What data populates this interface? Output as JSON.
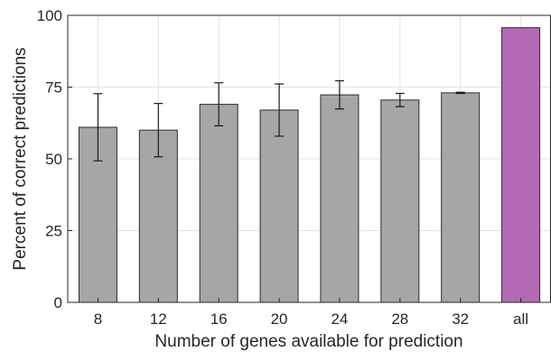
{
  "chart_data": {
    "type": "bar",
    "title": "",
    "xlabel": "Number of genes available for prediction",
    "ylabel": "Percent of correct predictions",
    "categories": [
      "8",
      "12",
      "16",
      "20",
      "24",
      "28",
      "32",
      "all"
    ],
    "values": [
      61,
      60,
      69,
      67,
      72.3,
      70.5,
      73,
      95.7
    ],
    "error": [
      11.7,
      9.3,
      7.5,
      9.1,
      4.9,
      2.3,
      0.2,
      0
    ],
    "bar_colors": [
      "#a6a6a6",
      "#a6a6a6",
      "#a6a6a6",
      "#a6a6a6",
      "#a6a6a6",
      "#a6a6a6",
      "#a6a6a6",
      "#b469b5"
    ],
    "ylim": [
      0,
      100
    ],
    "yticks": [
      0,
      25,
      50,
      75,
      100
    ],
    "grid": true,
    "legend": "none"
  }
}
